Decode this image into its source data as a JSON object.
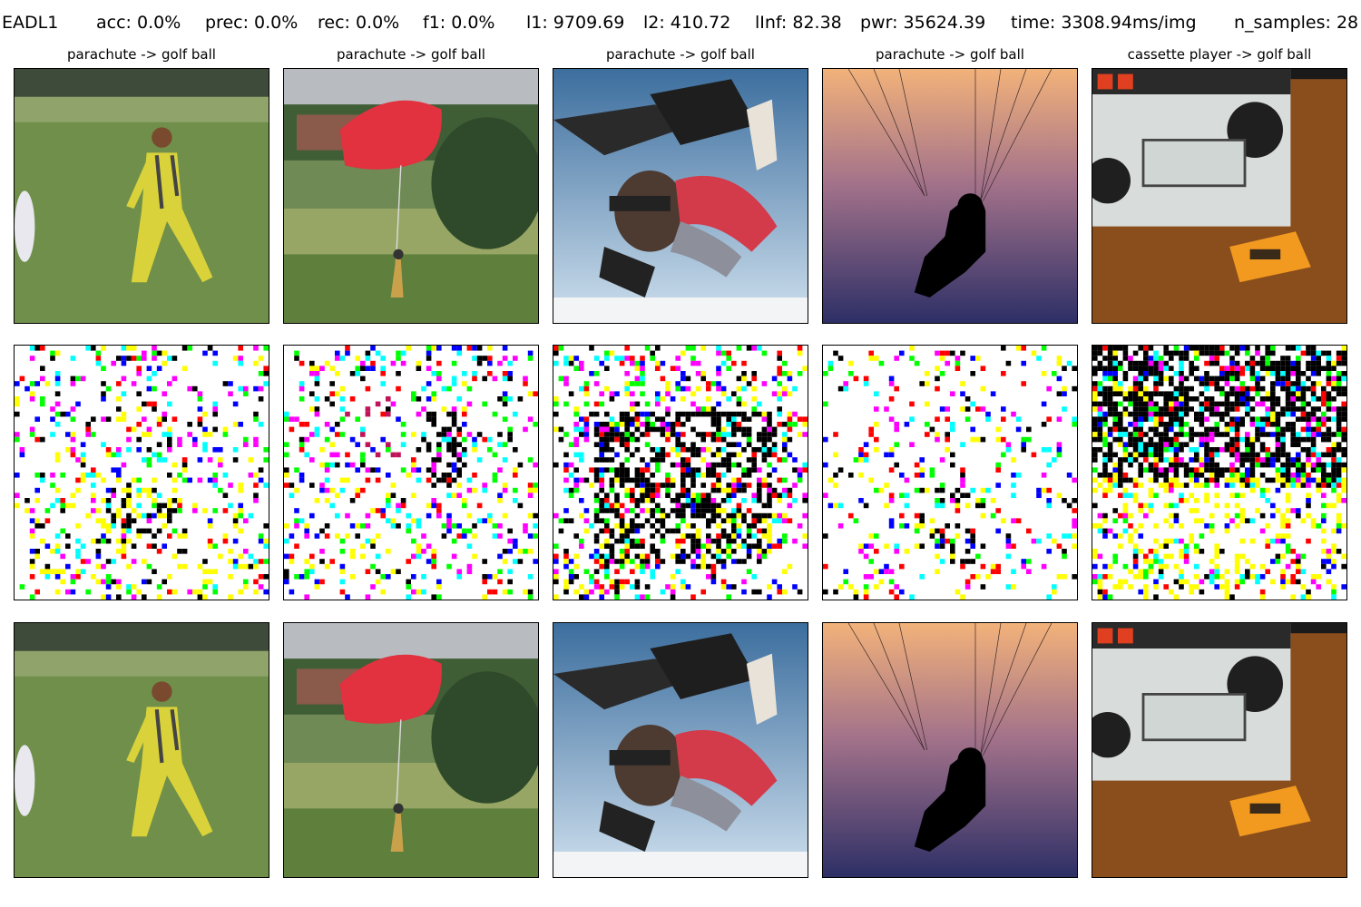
{
  "header": {
    "method": "EADL1",
    "acc": "acc: 0.0%",
    "prec": "prec: 0.0%",
    "rec": "rec: 0.0%",
    "f1": "f1: 0.0%",
    "l1": "l1: 9709.69",
    "l2": "l2: 410.72",
    "linf": "lInf: 82.38",
    "pwr": "pwr: 35624.39",
    "time": "time: 3308.94ms/img",
    "n_samples": "n_samples: 28"
  },
  "columns": [
    {
      "caption": "parachute -> golf ball",
      "image": "woman-in-yellow-jumpsuit-on-field"
    },
    {
      "caption": "parachute -> golf ball",
      "image": "red-parachute-landing-near-trees"
    },
    {
      "caption": "parachute -> golf ball",
      "image": "tandem-skydivers-in-sky"
    },
    {
      "caption": "parachute -> golf ball",
      "image": "paraglider-silhouette-at-sunset"
    },
    {
      "caption": "cassette player -> golf ball",
      "image": "cassette-player-with-tape-on-table"
    }
  ],
  "rows": [
    "original",
    "perturbation",
    "adversarial"
  ],
  "colors": {
    "grass": "#6f8f4a",
    "sky_blue": "#4f7fb0",
    "sunset_top": "#f2b27a",
    "sunset_bottom": "#2d2f66",
    "parachute_red": "#e2313f",
    "jumpsuit_yellow": "#d9d23a",
    "table_brown": "#8a4d1c",
    "tape_orange": "#f29a1f"
  }
}
